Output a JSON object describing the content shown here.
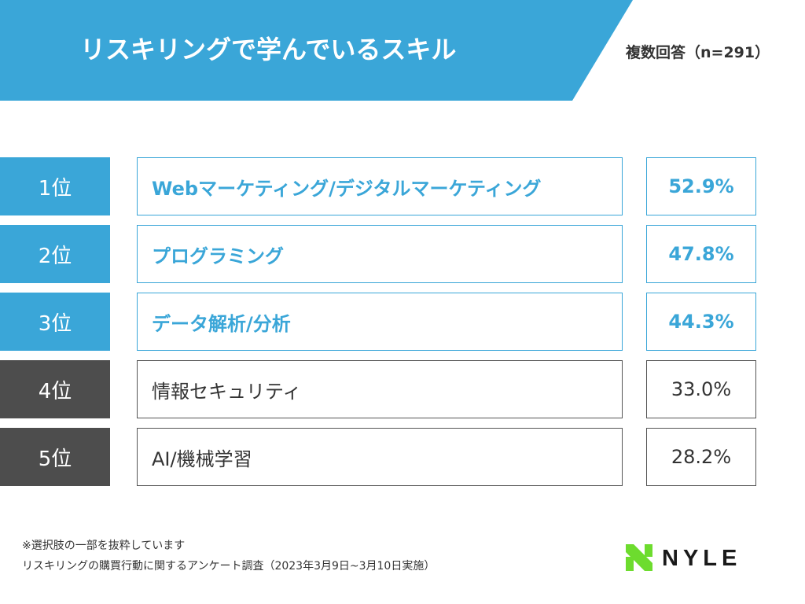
{
  "header": {
    "title": "リスキリングで学んでいるスキル",
    "sample_note": "複数回答（n=291）"
  },
  "colors": {
    "accent": "#3aa6d8",
    "dark": "#4d4d4d",
    "logo_green": "#6ddc2e",
    "logo_dark": "#1a1a1a"
  },
  "chart_data": {
    "type": "table",
    "title": "リスキリングで学んでいるスキル",
    "subtitle": "複数回答（n=291）",
    "categories": [
      "Webマーケティング/デジタルマーケティング",
      "プログラミング",
      "データ解析/分析",
      "情報セキュリティ",
      "AI/機械学習"
    ],
    "values": [
      52.9,
      47.8,
      44.3,
      33.0,
      28.2
    ],
    "rows": [
      {
        "rank": "1位",
        "skill": "Webマーケティング/デジタルマーケティング",
        "percent": "52.9%",
        "highlight": true
      },
      {
        "rank": "2位",
        "skill": "プログラミング",
        "percent": "47.8%",
        "highlight": true
      },
      {
        "rank": "3位",
        "skill": "データ解析/分析",
        "percent": "44.3%",
        "highlight": true
      },
      {
        "rank": "4位",
        "skill": "情報セキュリティ",
        "percent": "33.0%",
        "highlight": false
      },
      {
        "rank": "5位",
        "skill": "AI/機械学習",
        "percent": "28.2%",
        "highlight": false
      }
    ]
  },
  "footnotes": {
    "line1": "※選択肢の一部を抜粋しています",
    "line2": "リスキリングの購買行動に関するアンケート調査（2023年3月9日~3月10日実施）"
  },
  "logo": {
    "text": "NYLE",
    "icon": "nyle-logo-icon"
  }
}
